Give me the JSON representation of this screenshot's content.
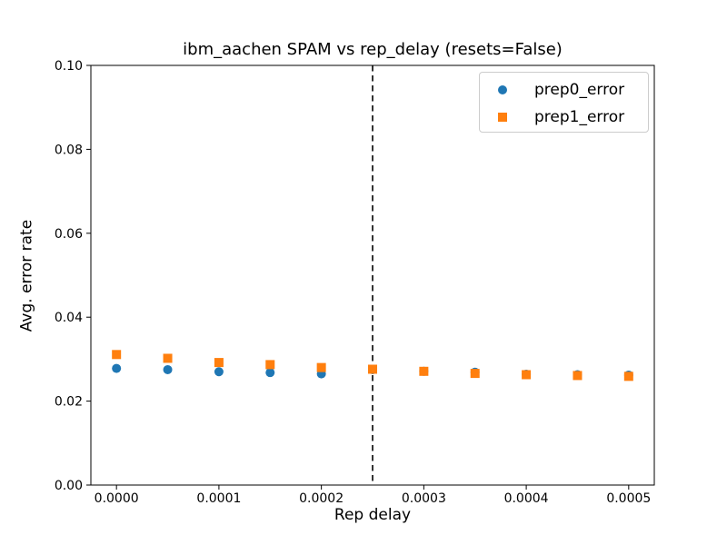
{
  "chart_data": {
    "type": "scatter",
    "title": "ibm_aachen SPAM vs rep_delay (resets=False)",
    "xlabel": "Rep delay",
    "ylabel": "Avg. error rate",
    "xlim": [
      -2.5e-05,
      0.000525
    ],
    "ylim": [
      0.0,
      0.1
    ],
    "grid": false,
    "legend_position": "upper right",
    "xticks": {
      "values": [
        0.0,
        0.0001,
        0.0002,
        0.0003,
        0.0004,
        0.0005
      ],
      "labels": [
        "0.0000",
        "0.0001",
        "0.0002",
        "0.0003",
        "0.0004",
        "0.0005"
      ]
    },
    "yticks": {
      "values": [
        0.0,
        0.02,
        0.04,
        0.06,
        0.08,
        0.1
      ],
      "labels": [
        "0.00",
        "0.02",
        "0.04",
        "0.06",
        "0.08",
        "0.10"
      ]
    },
    "x": [
      0.0,
      5e-05,
      0.0001,
      0.00015,
      0.0002,
      0.00025,
      0.0003,
      0.00035,
      0.0004,
      0.00045,
      0.0005
    ],
    "series": [
      {
        "name": "prep0_error",
        "marker": "circle",
        "color": "#1f77b4",
        "values": [
          0.0278,
          0.0275,
          0.027,
          0.0268,
          0.0265,
          0.0275,
          0.0271,
          0.0269,
          0.0264,
          0.0263,
          0.0262
        ]
      },
      {
        "name": "prep1_error",
        "marker": "square",
        "color": "#ff7f0e",
        "values": [
          0.0311,
          0.0302,
          0.0292,
          0.0287,
          0.028,
          0.0276,
          0.0271,
          0.0266,
          0.0263,
          0.0261,
          0.0259
        ]
      }
    ],
    "vline": {
      "x": 0.00025,
      "color": "#000000",
      "style": "dashed"
    }
  }
}
